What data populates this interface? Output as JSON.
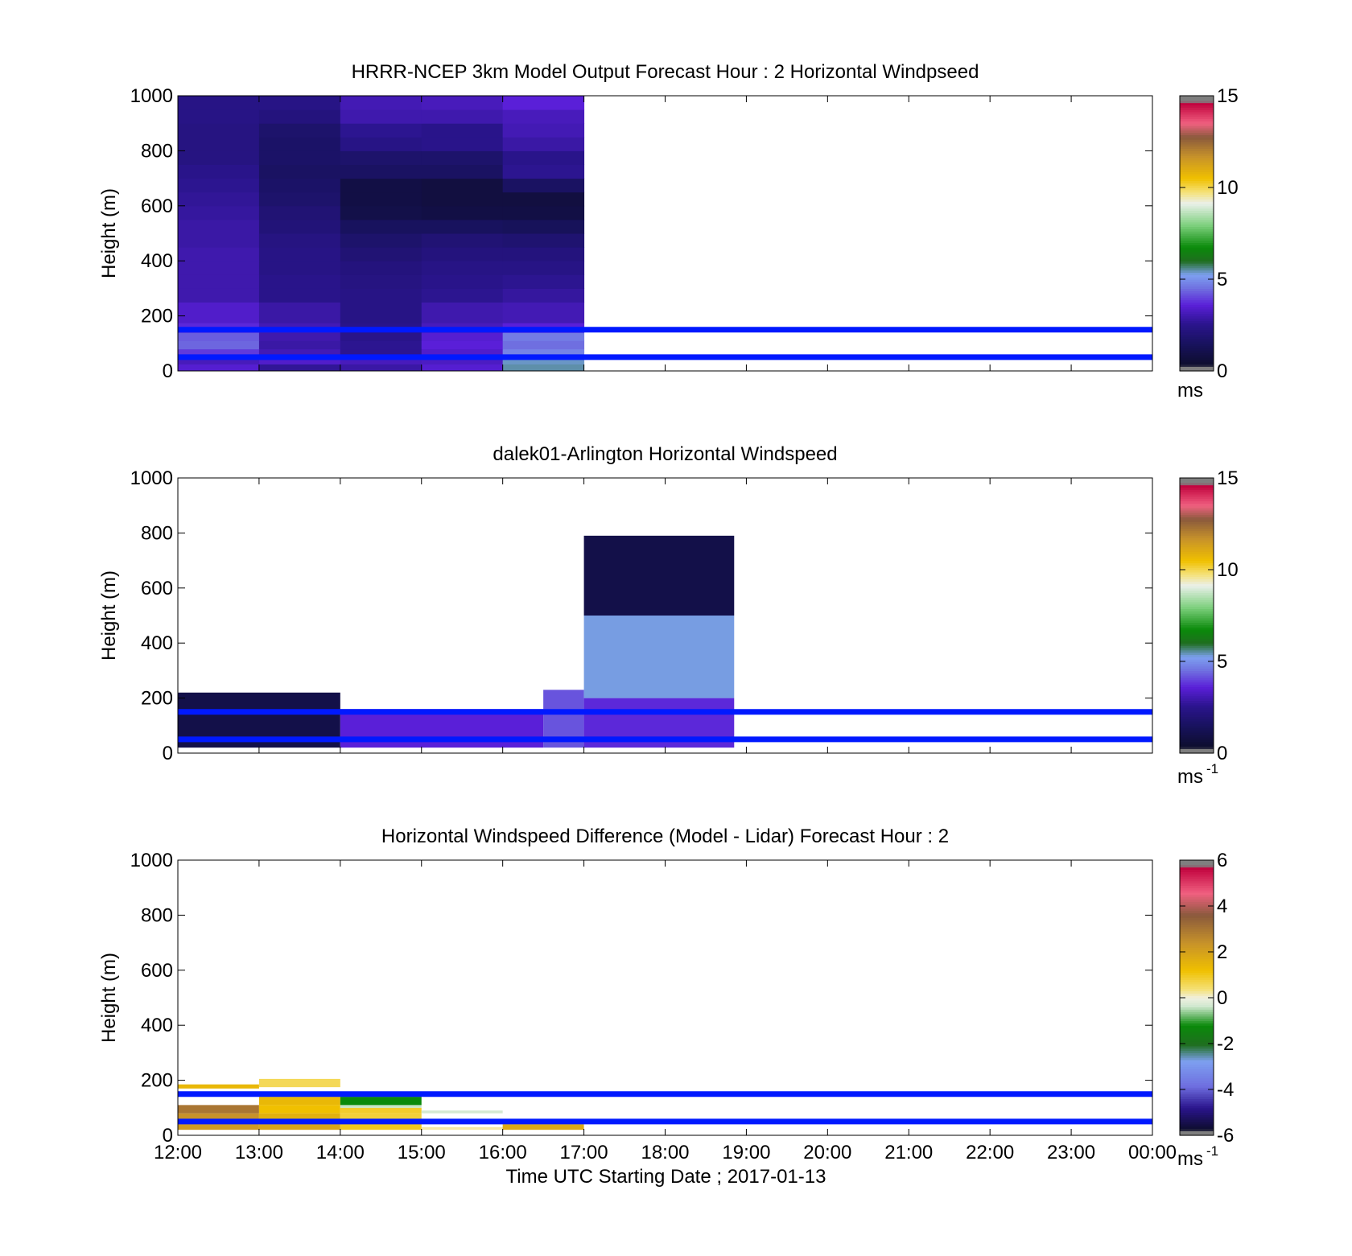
{
  "figure": {
    "xlabel": "Time UTC  Starting Date ; 2017-01-13",
    "x_ticks": [
      "12:00",
      "13:00",
      "14:00",
      "15:00",
      "16:00",
      "17:00",
      "18:00",
      "19:00",
      "20:00",
      "21:00",
      "22:00",
      "23:00",
      "00:00"
    ]
  },
  "colors": {
    "reference_lines": "#0019ff",
    "windspeed_colormap": [
      [
        0.0,
        "#7f7f7f"
      ],
      [
        0.02,
        "#7f7f7f"
      ],
      [
        0.021,
        "#0d0d2c"
      ],
      [
        0.1,
        "#18125e"
      ],
      [
        0.17,
        "#2a148c"
      ],
      [
        0.24,
        "#5a1fd8"
      ],
      [
        0.3,
        "#6f6fe0"
      ],
      [
        0.35,
        "#7da0f0"
      ],
      [
        0.4,
        "#1f6e1f"
      ],
      [
        0.45,
        "#0a8a0a"
      ],
      [
        0.53,
        "#7dd07d"
      ],
      [
        0.61,
        "#eaf0ea"
      ],
      [
        0.65,
        "#f5e27a"
      ],
      [
        0.7,
        "#f0c000"
      ],
      [
        0.78,
        "#c7922a"
      ],
      [
        0.85,
        "#8a5a3c"
      ],
      [
        0.9,
        "#f06080"
      ],
      [
        0.975,
        "#c0003c"
      ],
      [
        0.98,
        "#7f7f7f"
      ],
      [
        1.0,
        "#7f7f7f"
      ]
    ],
    "difference_colormap": [
      [
        0.0,
        "#7f7f7f"
      ],
      [
        0.02,
        "#7f7f7f"
      ],
      [
        0.021,
        "#0d0d2c"
      ],
      [
        0.1,
        "#2a148c"
      ],
      [
        0.18,
        "#6f6fe0"
      ],
      [
        0.27,
        "#7da0f0"
      ],
      [
        0.33,
        "#1f6e1f"
      ],
      [
        0.4,
        "#0a8a0a"
      ],
      [
        0.47,
        "#cfe8cf"
      ],
      [
        0.5,
        "#f0f0e0"
      ],
      [
        0.53,
        "#f5e27a"
      ],
      [
        0.6,
        "#f0c000"
      ],
      [
        0.7,
        "#c7922a"
      ],
      [
        0.8,
        "#8a5a3c"
      ],
      [
        0.88,
        "#f06080"
      ],
      [
        0.975,
        "#c0003c"
      ],
      [
        0.98,
        "#7f7f7f"
      ],
      [
        1.0,
        "#7f7f7f"
      ]
    ]
  },
  "chart_data": [
    {
      "type": "heatmap",
      "title": "HRRR-NCEP 3km Model Output   Forecast Hour : 2 Horizontal Windpseed",
      "ylabel": "Height (m)",
      "xlim": [
        "12:00",
        "00:00"
      ],
      "ylim": [
        0,
        1000
      ],
      "y_ticks": [
        "0",
        "200",
        "400",
        "600",
        "800",
        "1000"
      ],
      "reference_lines_m": [
        50,
        150
      ],
      "colorbar": {
        "clim": [
          0,
          15
        ],
        "ticks": [
          "0",
          "5",
          "10",
          "15"
        ],
        "unit": "ms",
        "unit_sup": ""
      },
      "x_hours": [
        12,
        13,
        14,
        15,
        16
      ],
      "height_bins_m": [
        [
          0,
          25
        ],
        [
          25,
          50
        ],
        [
          50,
          80
        ],
        [
          80,
          110
        ],
        [
          110,
          140
        ],
        [
          140,
          175
        ],
        [
          175,
          250
        ],
        [
          250,
          300
        ],
        [
          300,
          350
        ],
        [
          350,
          400
        ],
        [
          400,
          450
        ],
        [
          450,
          500
        ],
        [
          500,
          550
        ],
        [
          550,
          600
        ],
        [
          600,
          650
        ],
        [
          650,
          700
        ],
        [
          700,
          750
        ],
        [
          750,
          800
        ],
        [
          800,
          850
        ],
        [
          850,
          900
        ],
        [
          900,
          950
        ],
        [
          950,
          1000
        ]
      ],
      "values_ms": [
        [
          3.5,
          2.7,
          2.9,
          3.5,
          5.5
        ],
        [
          3.2,
          3.4,
          3.2,
          3.3,
          5.4
        ],
        [
          3.9,
          3.1,
          2.6,
          3.4,
          4.8
        ],
        [
          4.4,
          2.9,
          2.6,
          3.6,
          4.5
        ],
        [
          4.3,
          3.0,
          2.5,
          3.5,
          4.7
        ],
        [
          3.7,
          3.1,
          2.5,
          3.2,
          3.6
        ],
        [
          3.4,
          2.9,
          2.4,
          3.0,
          3.1
        ],
        [
          3.0,
          2.5,
          2.4,
          2.6,
          2.8
        ],
        [
          3.0,
          2.5,
          2.3,
          2.5,
          2.6
        ],
        [
          3.0,
          2.4,
          2.2,
          2.4,
          2.4
        ],
        [
          3.0,
          2.4,
          2.0,
          2.2,
          2.2
        ],
        [
          2.9,
          2.3,
          1.8,
          2.0,
          1.9
        ],
        [
          2.9,
          2.1,
          1.5,
          1.5,
          1.4
        ],
        [
          2.8,
          2.0,
          1.0,
          0.9,
          0.9
        ],
        [
          2.7,
          1.8,
          0.9,
          0.8,
          0.8
        ],
        [
          2.6,
          1.7,
          0.9,
          0.8,
          1.6
        ],
        [
          2.5,
          1.6,
          1.6,
          1.6,
          2.6
        ],
        [
          2.3,
          1.7,
          1.8,
          1.8,
          2.5
        ],
        [
          2.3,
          1.7,
          2.4,
          2.5,
          2.9
        ],
        [
          2.3,
          1.8,
          2.6,
          2.5,
          3.1
        ],
        [
          2.4,
          2.2,
          3.0,
          3.0,
          3.2
        ],
        [
          2.4,
          2.4,
          3.1,
          3.2,
          3.6
        ]
      ]
    },
    {
      "type": "heatmap",
      "title": "dalek01-Arlington  Horizontal Windspeed",
      "ylabel": "Height (m)",
      "xlim": [
        "12:00",
        "00:00"
      ],
      "ylim": [
        0,
        1000
      ],
      "y_ticks": [
        "0",
        "200",
        "400",
        "600",
        "800",
        "1000"
      ],
      "reference_lines_m": [
        50,
        150
      ],
      "colorbar": {
        "clim": [
          0,
          15
        ],
        "ticks": [
          "0",
          "5",
          "10",
          "15"
        ],
        "unit": "ms",
        "unit_sup": "-1"
      },
      "measured_regions": [
        {
          "t_start": 12.0,
          "t_end": 14.0,
          "z_bottom_m": 20,
          "z_top_m": 220,
          "speed_ms": 1.0
        },
        {
          "t_start": 14.0,
          "t_end": 16.5,
          "z_bottom_m": 20,
          "z_top_m": 160,
          "speed_ms": 3.6
        },
        {
          "t_start": 16.5,
          "t_end": 17.0,
          "z_bottom_m": 20,
          "z_top_m": 230,
          "speed_ms": 4.2
        },
        {
          "t_start": 17.0,
          "t_end": 18.85,
          "z_bottom_m": 20,
          "z_top_m": 200,
          "speed_ms": 3.7
        },
        {
          "t_start": 17.0,
          "t_end": 18.85,
          "z_bottom_m": 200,
          "z_top_m": 500,
          "speed_ms": 5.3
        },
        {
          "t_start": 17.0,
          "t_end": 18.85,
          "z_bottom_m": 500,
          "z_top_m": 790,
          "speed_ms": 1.0
        }
      ]
    },
    {
      "type": "heatmap",
      "title": "Horizontal Windspeed Difference (Model - Lidar) Forecast Hour : 2",
      "ylabel": "Height (m)",
      "xlim": [
        "12:00",
        "00:00"
      ],
      "ylim": [
        0,
        1000
      ],
      "y_ticks": [
        "0",
        "200",
        "400",
        "600",
        "800",
        "1000"
      ],
      "reference_lines_m": [
        50,
        150
      ],
      "colorbar": {
        "clim": [
          -6,
          6
        ],
        "ticks": [
          "-6",
          "-4",
          "-2",
          "0",
          "2",
          "4",
          "6"
        ],
        "unit": "ms",
        "unit_sup": "-1"
      },
      "cells": [
        {
          "t_start": 12,
          "t_end": 13,
          "z_bottom_m": 20,
          "z_top_m": 40,
          "diff_ms": 2.2
        },
        {
          "t_start": 12,
          "t_end": 13,
          "z_bottom_m": 40,
          "z_top_m": 60,
          "diff_ms": 2.6
        },
        {
          "t_start": 12,
          "t_end": 13,
          "z_bottom_m": 60,
          "z_top_m": 80,
          "diff_ms": 2.4
        },
        {
          "t_start": 12,
          "t_end": 13,
          "z_bottom_m": 80,
          "z_top_m": 110,
          "diff_ms": 3.0
        },
        {
          "t_start": 12,
          "t_end": 13,
          "z_bottom_m": 170,
          "z_top_m": 185,
          "diff_ms": 1.4
        },
        {
          "t_start": 13,
          "t_end": 14,
          "z_bottom_m": 20,
          "z_top_m": 40,
          "diff_ms": 1.9
        },
        {
          "t_start": 13,
          "t_end": 14,
          "z_bottom_m": 40,
          "z_top_m": 60,
          "diff_ms": 2.4
        },
        {
          "t_start": 13,
          "t_end": 14,
          "z_bottom_m": 60,
          "z_top_m": 80,
          "diff_ms": 1.6
        },
        {
          "t_start": 13,
          "t_end": 14,
          "z_bottom_m": 80,
          "z_top_m": 110,
          "diff_ms": 1.2
        },
        {
          "t_start": 13,
          "t_end": 14,
          "z_bottom_m": 110,
          "z_top_m": 140,
          "diff_ms": 1.4
        },
        {
          "t_start": 13,
          "t_end": 14,
          "z_bottom_m": 175,
          "z_top_m": 205,
          "diff_ms": 0.6
        },
        {
          "t_start": 14,
          "t_end": 15,
          "z_bottom_m": 20,
          "z_top_m": 40,
          "diff_ms": 1.0
        },
        {
          "t_start": 14,
          "t_end": 15,
          "z_bottom_m": 40,
          "z_top_m": 60,
          "diff_ms": 1.2
        },
        {
          "t_start": 14,
          "t_end": 15,
          "z_bottom_m": 60,
          "z_top_m": 80,
          "diff_ms": 0.8
        },
        {
          "t_start": 14,
          "t_end": 15,
          "z_bottom_m": 80,
          "z_top_m": 100,
          "diff_ms": 0.9
        },
        {
          "t_start": 14,
          "t_end": 15,
          "z_bottom_m": 100,
          "z_top_m": 110,
          "diff_ms": -0.4
        },
        {
          "t_start": 14,
          "t_end": 15,
          "z_bottom_m": 110,
          "z_top_m": 140,
          "diff_ms": -1.2
        },
        {
          "t_start": 15,
          "t_end": 16,
          "z_bottom_m": 20,
          "z_top_m": 30,
          "diff_ms": 0.2
        },
        {
          "t_start": 15,
          "t_end": 16,
          "z_bottom_m": 80,
          "z_top_m": 90,
          "diff_ms": -0.3
        },
        {
          "t_start": 16,
          "t_end": 17,
          "z_bottom_m": 20,
          "z_top_m": 40,
          "diff_ms": 1.8
        },
        {
          "t_start": 16,
          "t_end": 17,
          "z_bottom_m": 40,
          "z_top_m": 45,
          "diff_ms": 0.4
        }
      ]
    }
  ]
}
